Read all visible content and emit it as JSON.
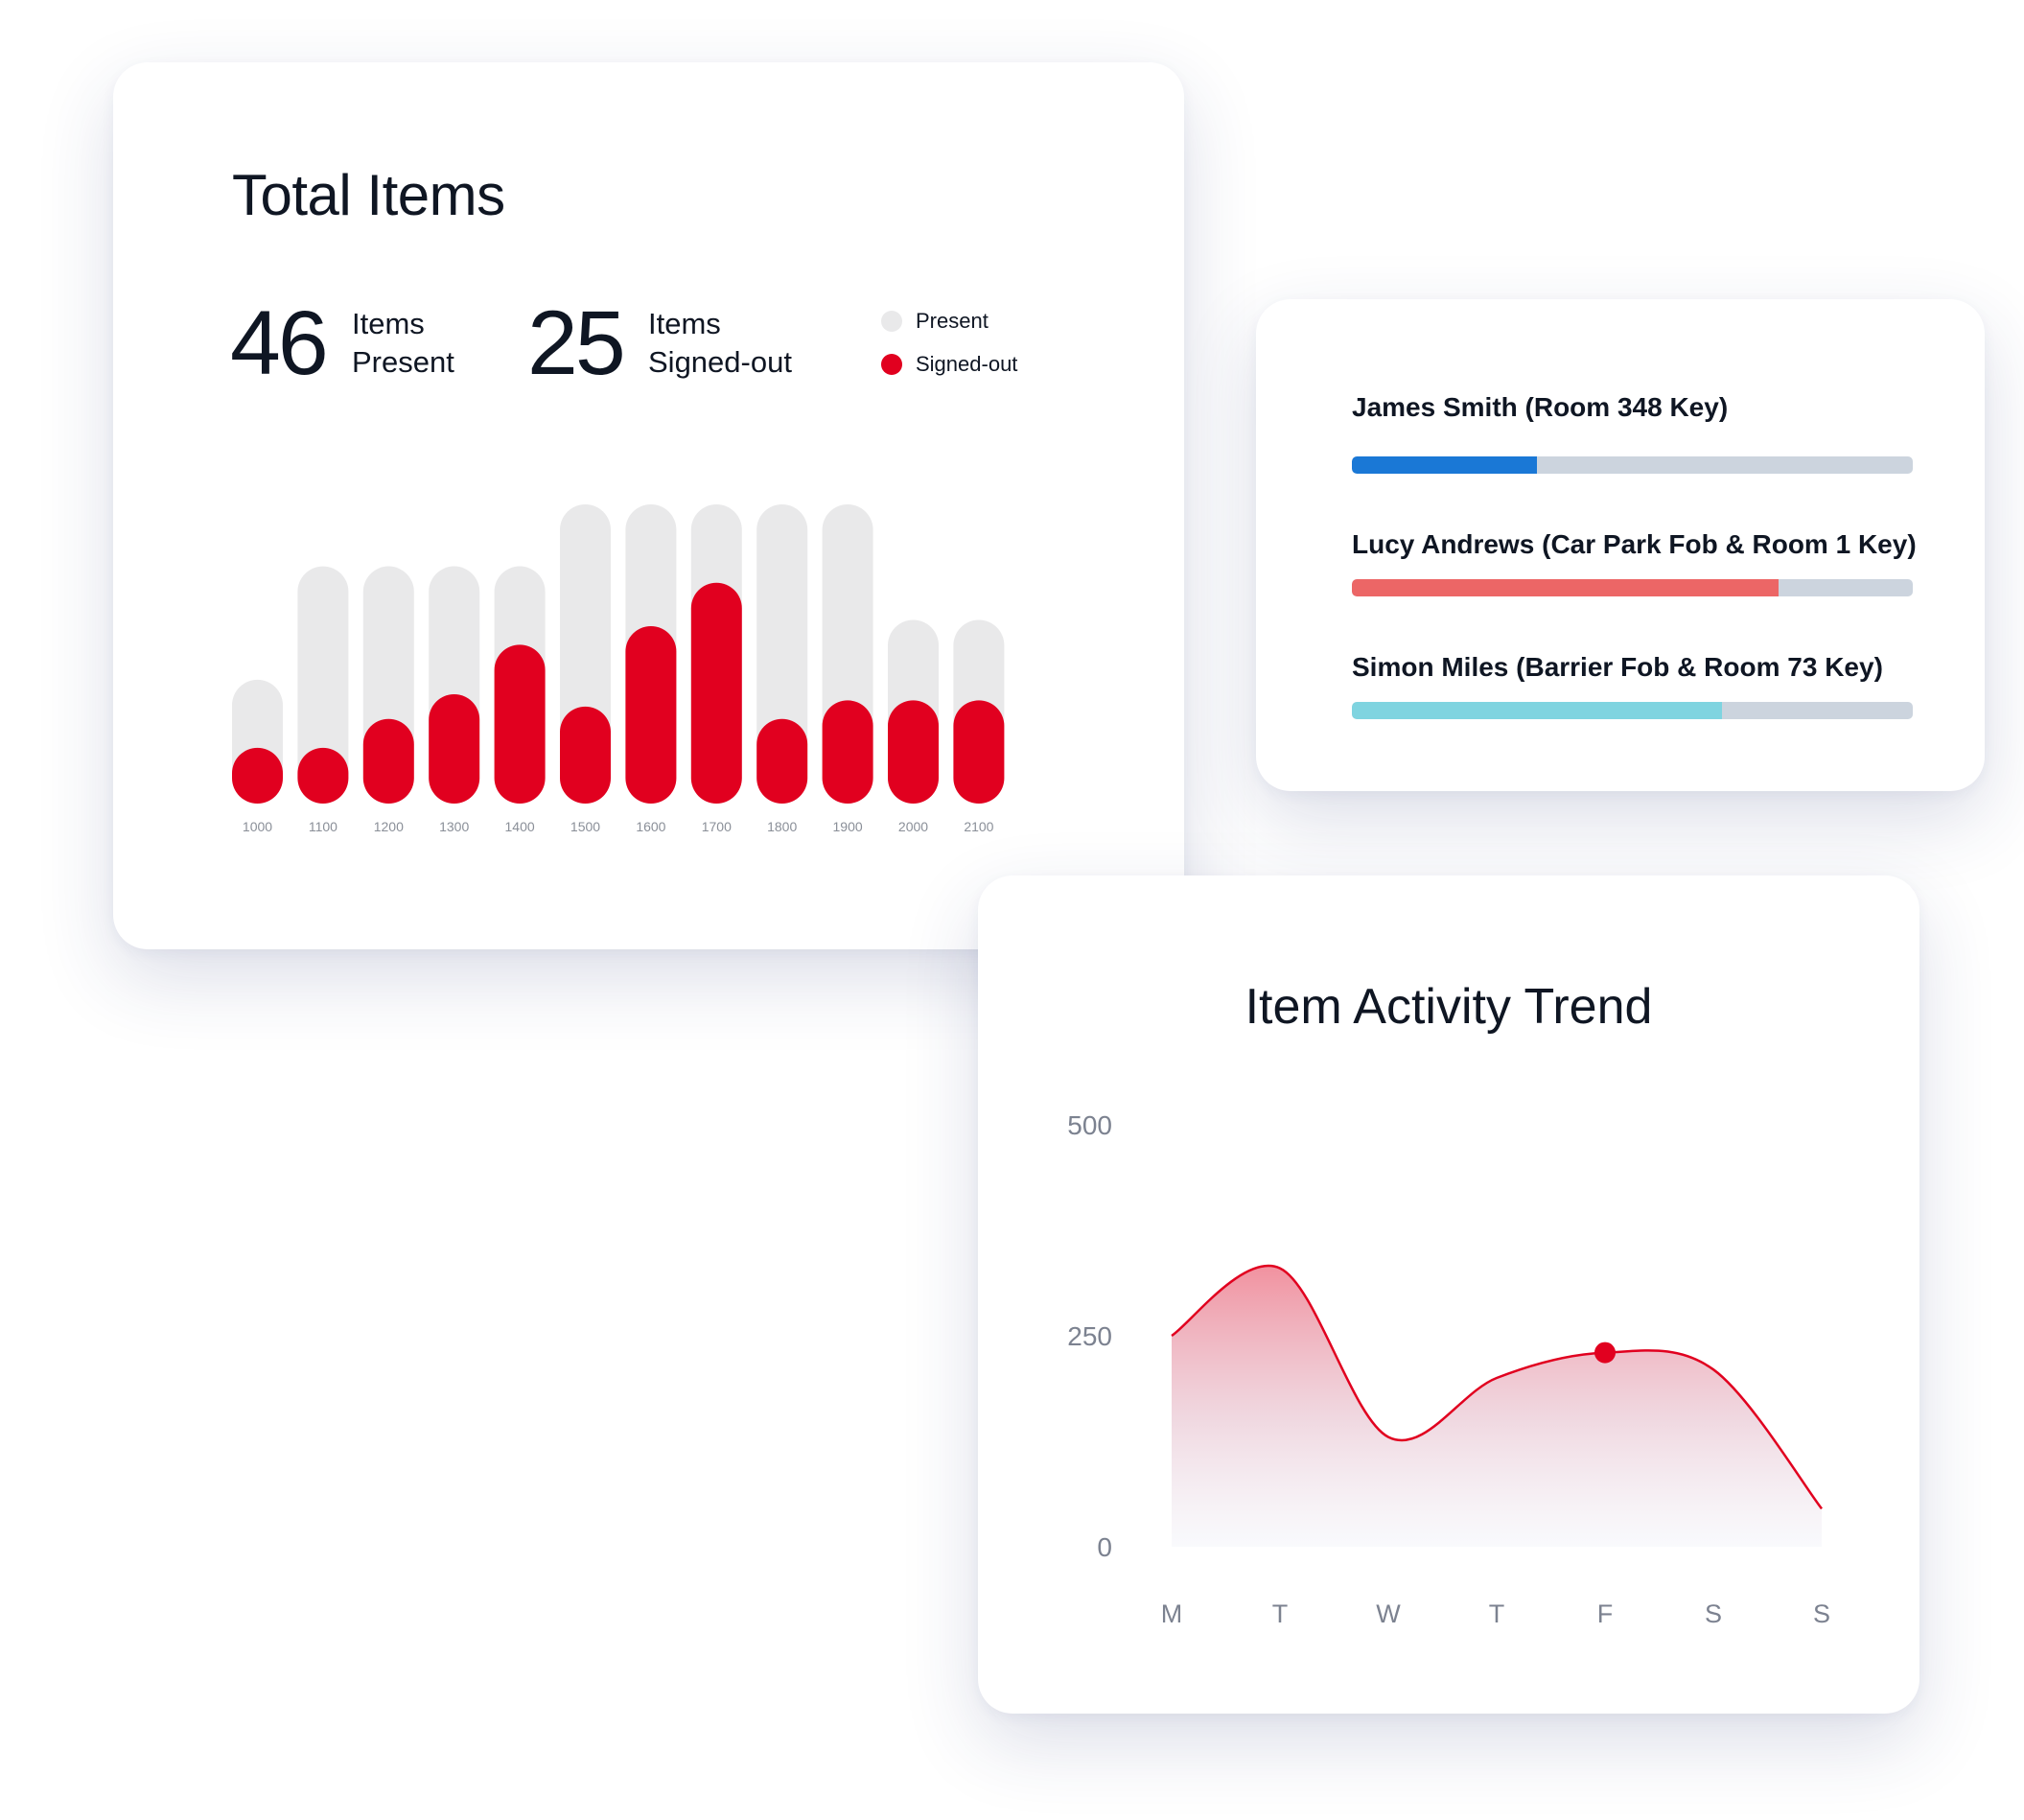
{
  "total_items": {
    "title": "Total Items",
    "present": {
      "count": "46",
      "label_line1": "Items",
      "label_line2": "Present"
    },
    "signed_out": {
      "count": "25",
      "label_line1": "Items",
      "label_line2": "Signed-out"
    },
    "legend": [
      {
        "label": "Present",
        "color": "#e9e9ea"
      },
      {
        "label": "Signed-out",
        "color": "#e1001f"
      }
    ]
  },
  "people": [
    {
      "name": "James Smith (Room 348 Key)",
      "progress": 0.33,
      "color": "#1a78d6"
    },
    {
      "name": "Lucy Andrews (Car Park Fob & Room 1 Key)",
      "progress": 0.76,
      "color": "#ec6666"
    },
    {
      "name": "Simon Miles (Barrier Fob & Room 73 Key)",
      "progress": 0.66,
      "color": "#7fd4e0"
    }
  ],
  "trend": {
    "title": "Item Activity Trend"
  },
  "chart_data": [
    {
      "type": "bar",
      "categories": [
        "1000",
        "1100",
        "1200",
        "1300",
        "1400",
        "1500",
        "1600",
        "1700",
        "1800",
        "1900",
        "2000",
        "2100"
      ],
      "series": [
        {
          "name": "Present",
          "values": [
            60,
            115,
            115,
            115,
            115,
            145,
            145,
            145,
            145,
            145,
            89,
            89
          ],
          "color": "#e9e9ea"
        },
        {
          "name": "Signed-out",
          "values": [
            27,
            27,
            41,
            53,
            77,
            47,
            86,
            107,
            41,
            50,
            50,
            50
          ],
          "color": "#e1001f"
        }
      ],
      "title": "",
      "xlabel": "",
      "ylabel": "",
      "ylim": [
        0,
        145
      ],
      "grid": false,
      "legend": "top-right"
    },
    {
      "type": "area",
      "x": [
        "M",
        "T",
        "W",
        "T",
        "F",
        "S",
        "S"
      ],
      "y": [
        250,
        330,
        130,
        200,
        230,
        210,
        45
      ],
      "highlight_index": 4,
      "yticks": [
        "500",
        "250",
        "0"
      ],
      "ylim": [
        0,
        500
      ],
      "title": "Item Activity Trend",
      "color": "#e1001f",
      "grid": false
    }
  ]
}
